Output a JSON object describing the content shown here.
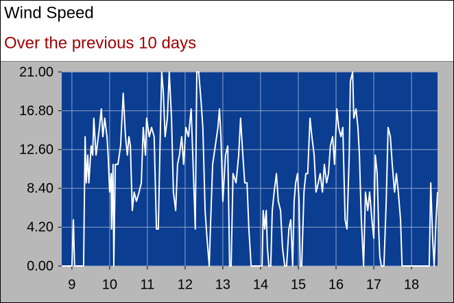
{
  "chart_data": {
    "type": "line",
    "title": "Wind Speed",
    "subtitle": "Over the previous 10 days",
    "color": "#ffffff",
    "grid": true,
    "x": [
      8.73,
      9.0,
      9.04,
      9.07,
      9.31,
      9.35,
      9.38,
      9.42,
      9.45,
      9.51,
      9.55,
      9.58,
      9.64,
      9.73,
      9.78,
      9.82,
      9.87,
      9.93,
      9.96,
      10.0,
      10.04,
      10.05,
      10.09,
      10.11,
      10.15,
      10.22,
      10.29,
      10.36,
      10.42,
      10.47,
      10.51,
      10.55,
      10.6,
      10.65,
      10.71,
      10.78,
      10.84,
      10.89,
      10.95,
      10.98,
      11.05,
      11.11,
      11.18,
      11.24,
      11.29,
      11.33,
      11.38,
      11.42,
      11.47,
      11.53,
      11.58,
      11.64,
      11.69,
      11.75,
      11.8,
      11.85,
      11.91,
      11.96,
      12.02,
      12.09,
      12.16,
      12.22,
      12.27,
      12.31,
      12.36,
      12.42,
      12.47,
      12.53,
      12.58,
      12.64,
      12.67,
      12.73,
      12.8,
      12.87,
      12.91,
      12.95,
      13.0,
      13.07,
      13.13,
      13.18,
      13.22,
      13.27,
      13.35,
      13.42,
      13.47,
      13.53,
      13.58,
      13.64,
      13.69,
      13.75,
      14.04,
      14.07,
      14.11,
      14.15,
      14.18,
      14.22,
      14.27,
      14.31,
      14.36,
      14.42,
      14.47,
      14.53,
      14.58,
      14.64,
      14.69,
      14.75,
      14.8,
      14.85,
      14.89,
      14.93,
      14.98,
      15.02,
      15.05,
      15.09,
      15.15,
      15.2,
      15.25,
      15.31,
      15.36,
      15.42,
      15.47,
      15.53,
      15.58,
      15.64,
      15.69,
      15.75,
      15.8,
      15.85,
      15.91,
      15.96,
      16.02,
      16.07,
      16.13,
      16.18,
      16.24,
      16.29,
      16.35,
      16.38,
      16.44,
      16.47,
      16.53,
      16.58,
      16.62,
      16.67,
      16.73,
      16.78,
      16.84,
      16.89,
      16.95,
      17.0,
      17.04,
      17.09,
      17.13,
      17.16,
      17.2,
      17.27,
      17.33,
      17.38,
      17.44,
      17.49,
      17.55,
      17.6,
      17.65,
      17.71,
      17.75,
      18.47,
      18.51,
      18.56,
      18.6,
      18.65,
      18.69
    ],
    "values": [
      0,
      0,
      5,
      0,
      0,
      14,
      9,
      12,
      9,
      13,
      12,
      16,
      12,
      15,
      17,
      14,
      16,
      14,
      12,
      8,
      10,
      4,
      11,
      0,
      11,
      11,
      13,
      18.7,
      14,
      12,
      14,
      13,
      6,
      8,
      7,
      8,
      9,
      15,
      12,
      16,
      14,
      15,
      14,
      4,
      4,
      12,
      21,
      19,
      14,
      16,
      21,
      16,
      8,
      6,
      11,
      12,
      14,
      11,
      15,
      14,
      17,
      10,
      4,
      21,
      21,
      18,
      15,
      6,
      3,
      0,
      4,
      11,
      13,
      15,
      17,
      14,
      7,
      12,
      13,
      0,
      0,
      10,
      9,
      12,
      16,
      12,
      9,
      9,
      4,
      0,
      0,
      6,
      4,
      6,
      2,
      0,
      0,
      6,
      8,
      10,
      7,
      6,
      2,
      0,
      0,
      4,
      5,
      0,
      7,
      9,
      10,
      7,
      0,
      0,
      8,
      10,
      10,
      16,
      14,
      12,
      8,
      9,
      10,
      8,
      11,
      9,
      10,
      13,
      14,
      11,
      17,
      15,
      14,
      15,
      5,
      4,
      12,
      20,
      21,
      16,
      17,
      15,
      12,
      5,
      0,
      8,
      6,
      8,
      5,
      3,
      12,
      10,
      4,
      1,
      0,
      0,
      7,
      15,
      14,
      11,
      8,
      10,
      8,
      5,
      0,
      0,
      9,
      3,
      0,
      5,
      8
    ],
    "xlim": [
      8.73,
      18.69
    ],
    "xticks": [
      9,
      10,
      11,
      12,
      13,
      14,
      15,
      16,
      17,
      18
    ],
    "ylim": [
      0,
      21
    ],
    "yticks": [
      {
        "value": 0,
        "label": "0.00"
      },
      {
        "value": 4.2,
        "label": "4.20"
      },
      {
        "value": 8.4,
        "label": "8.40"
      },
      {
        "value": 12.6,
        "label": "12.60"
      },
      {
        "value": 16.8,
        "label": "16.80"
      },
      {
        "value": 21,
        "label": "21.00"
      }
    ]
  }
}
